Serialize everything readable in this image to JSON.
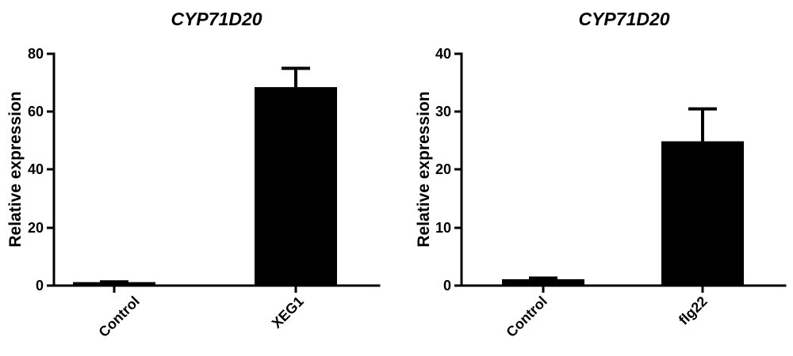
{
  "chart_data": [
    {
      "type": "bar",
      "title": "CYP71D20",
      "ylabel": "Relative expression",
      "categories": [
        "Control",
        "XEG1"
      ],
      "values": [
        1.2,
        68.5
      ],
      "error": [
        0.1,
        6.5
      ],
      "ylim": [
        0,
        80
      ],
      "yticks": [
        "0",
        "20",
        "40",
        "60",
        "80"
      ],
      "ytick_values": [
        0,
        20,
        40,
        60,
        80
      ],
      "grid": false,
      "bar_color": "#000000"
    },
    {
      "type": "bar",
      "title": "CYP71D20",
      "ylabel": "Relative expression",
      "categories": [
        "Control",
        "flg22"
      ],
      "values": [
        1.1,
        24.9
      ],
      "error": [
        0.2,
        5.6
      ],
      "ylim": [
        0,
        40
      ],
      "yticks": [
        "0",
        "10",
        "20",
        "30",
        "40"
      ],
      "ytick_values": [
        0,
        10,
        20,
        30,
        40
      ],
      "grid": false,
      "bar_color": "#000000"
    }
  ]
}
